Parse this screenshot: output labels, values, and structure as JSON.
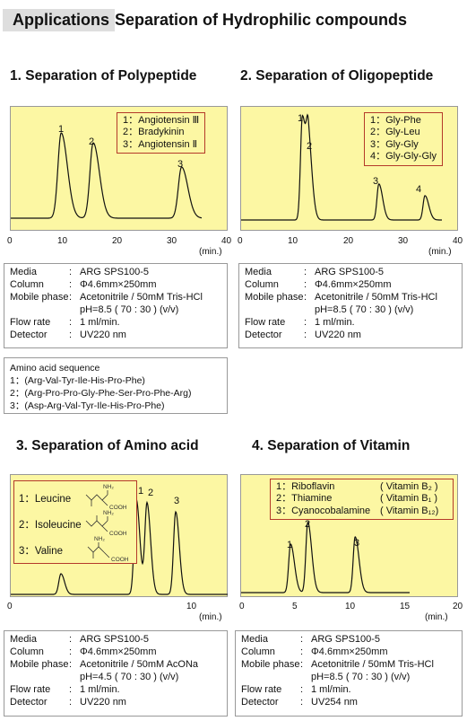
{
  "header": {
    "prefix": "Applications",
    "title": "Separation of Hydrophilic compounds"
  },
  "sections": [
    {
      "title": "1. Separation of Polypeptide",
      "legend": [
        "1：Angiotensin Ⅲ",
        "2：Bradykinin",
        "3：Angiotensin Ⅱ"
      ],
      "peak_labels": [
        "1",
        "2",
        "3"
      ],
      "x_ticks": [
        "0",
        "10",
        "20",
        "30",
        "40"
      ],
      "x_unit": "(min.)",
      "conditions": [
        {
          "k": "Media",
          "v": "ARG SPS100-5"
        },
        {
          "k": "Column",
          "v": "Φ4.6mm×250mm"
        },
        {
          "k": "Mobile phase",
          "v": "Acetonitrile / 50mM Tris-HCl"
        },
        {
          "k": "",
          "v": "pH=8.5 ( 70 : 30 ) (v/v)"
        },
        {
          "k": "Flow rate",
          "v": "1 ml/min."
        },
        {
          "k": "Detector",
          "v": "UV220 nm"
        }
      ]
    },
    {
      "title": "2. Separation of Oligopeptide",
      "legend": [
        "1：Gly-Phe",
        "2：Gly-Leu",
        "3：Gly-Gly",
        "4：Gly-Gly-Gly"
      ],
      "peak_labels": [
        "1",
        "2",
        "3",
        "4"
      ],
      "x_ticks": [
        "0",
        "10",
        "20",
        "30",
        "40"
      ],
      "x_unit": "(min.)",
      "conditions": [
        {
          "k": "Media",
          "v": "ARG SPS100-5"
        },
        {
          "k": "Column",
          "v": "Φ4.6mm×250mm"
        },
        {
          "k": "Mobile phase",
          "v": "Acetonitrile / 50mM Tris-HCl"
        },
        {
          "k": "",
          "v": "pH=8.5 ( 70 : 30 ) (v/v)"
        },
        {
          "k": "Flow rate",
          "v": "1 ml/min."
        },
        {
          "k": "Detector",
          "v": "UV220 nm"
        }
      ]
    },
    {
      "title": "3.  Separation of Amino acid",
      "legend": [
        "1：Leucine",
        "2：Isoleucine",
        "3：Valine"
      ],
      "peak_labels": [
        "1",
        "2",
        "3"
      ],
      "x_ticks": [
        "0",
        "10"
      ],
      "x_unit": "(min.)",
      "mol_text": {
        "nh2": "NH₂",
        "cooh": "COOH"
      },
      "conditions": [
        {
          "k": "Media",
          "v": "ARG SPS100-5"
        },
        {
          "k": "Column",
          "v": "Φ4.6mm×250mm"
        },
        {
          "k": "Mobile phase",
          "v": "Acetonitrile / 50mM AcONa"
        },
        {
          "k": "",
          "v": "pH=4.5 ( 70 : 30 ) (v/v)"
        },
        {
          "k": "Flow rate",
          "v": "1 ml/min."
        },
        {
          "k": "Detector",
          "v": "UV220 nm"
        }
      ]
    },
    {
      "title": "4.  Separation of Vitamin",
      "legend": [
        {
          "name": "1：Riboflavin",
          "vit": "( Vitamin B₂ )"
        },
        {
          "name": "2：Thiamine",
          "vit": "( Vitamin B₁ )"
        },
        {
          "name": "3：Cyanocobalamine",
          "vit": "( Vitamin B₁₂)"
        }
      ],
      "peak_labels": [
        "1",
        "2",
        "3"
      ],
      "x_ticks": [
        "0",
        "5",
        "10",
        "15",
        "20"
      ],
      "x_unit": "(min.)",
      "conditions": [
        {
          "k": "Media",
          "v": "ARG SPS100-5"
        },
        {
          "k": "Column",
          "v": "Φ4.6mm×250mm"
        },
        {
          "k": "Mobile phase",
          "v": "Acetonitrile / 50mM Tris-HCl"
        },
        {
          "k": "",
          "v": "pH=8.5 ( 70 : 30 ) (v/v)"
        },
        {
          "k": "Flow rate",
          "v": "1 ml/min."
        },
        {
          "k": "Detector",
          "v": "UV254 nm"
        }
      ]
    }
  ],
  "amino_acid_sequence": {
    "title": "Amino acid sequence",
    "lines": [
      "1：(Arg-Val-Tyr-Ile-His-Pro-Phe)",
      "2：(Arg-Pro-Pro-Gly-Phe-Ser-Pro-Phe-Arg)",
      "3：(Asp-Arg-Val-Tyr-Ile-His-Pro-Phe)"
    ]
  },
  "chart_data": [
    {
      "type": "line",
      "title": "1. Separation of Polypeptide",
      "xlabel": "(min.)",
      "xlim": [
        0,
        40
      ],
      "x_ticks": [
        0,
        10,
        20,
        30,
        40
      ],
      "series": [
        {
          "name": "",
          "peaks": [
            {
              "label": "1",
              "x": 9.3,
              "height": 0.95
            },
            {
              "label": "2",
              "x": 15.2,
              "height": 0.84
            },
            {
              "label": "3",
              "x": 31.5,
              "height": 0.57
            }
          ]
        }
      ]
    },
    {
      "type": "line",
      "title": "2. Separation of Oligopeptide",
      "xlabel": "(min.)",
      "xlim": [
        0,
        40
      ],
      "x_ticks": [
        0,
        10,
        20,
        30,
        40
      ],
      "series": [
        {
          "name": "",
          "peaks": [
            {
              "label": "1",
              "x": 11.3,
              "height": 0.98
            },
            {
              "label": "2",
              "x": 12.4,
              "height": 0.66
            },
            {
              "label": "3",
              "x": 25.4,
              "height": 0.34
            },
            {
              "label": "4",
              "x": 33.9,
              "height": 0.23
            }
          ]
        }
      ]
    },
    {
      "type": "line",
      "title": "3.  Separation of Amino acid",
      "xlabel": "(min.)",
      "xlim": [
        0,
        10
      ],
      "x_ticks": [
        0,
        10
      ],
      "series": [
        {
          "name": "",
          "peaks": [
            {
              "label": "",
              "x": 2.8,
              "height": 0.2
            },
            {
              "label": "1",
              "x": 7.0,
              "height": 0.92
            },
            {
              "label": "2",
              "x": 7.6,
              "height": 0.88
            },
            {
              "label": "3",
              "x": 9.2,
              "height": 0.8
            }
          ]
        }
      ]
    },
    {
      "type": "line",
      "title": "4.  Separation of Vitamin",
      "xlabel": "(min.)",
      "xlim": [
        0,
        20
      ],
      "x_ticks": [
        0,
        5,
        10,
        15,
        20
      ],
      "series": [
        {
          "name": "",
          "peaks": [
            {
              "label": "1",
              "x": 4.6,
              "height": 0.4
            },
            {
              "label": "2",
              "x": 6.2,
              "height": 0.58
            },
            {
              "label": "3",
              "x": 10.6,
              "height": 0.46
            }
          ]
        }
      ]
    }
  ]
}
